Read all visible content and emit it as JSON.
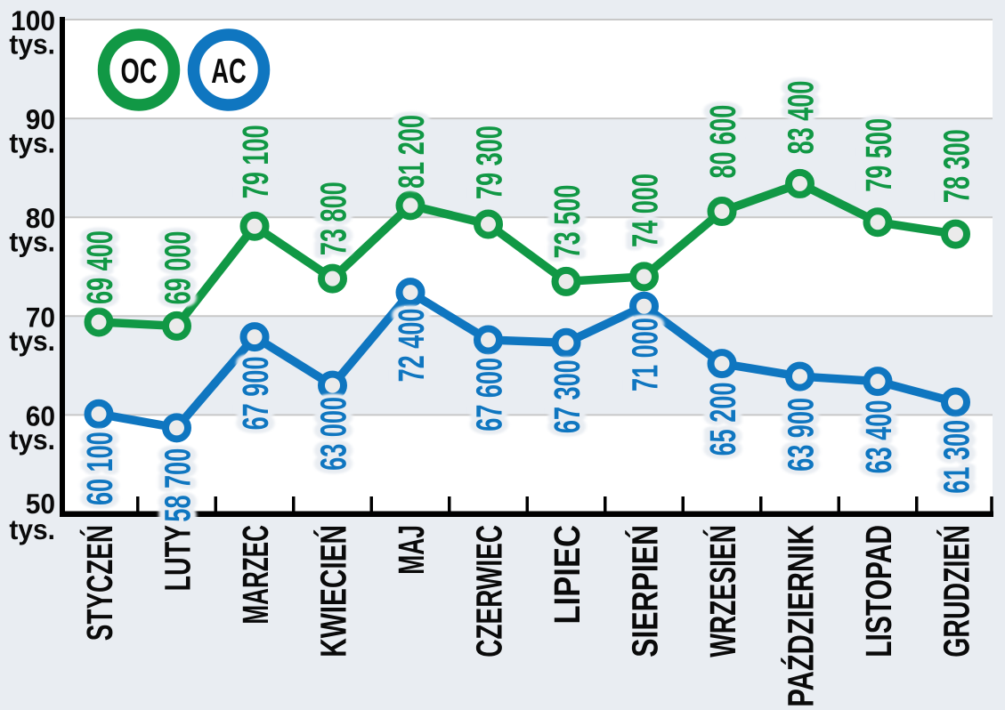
{
  "page": {
    "background": "#e9edf2"
  },
  "chart_data": {
    "type": "line",
    "title": "",
    "categories": [
      "STYCZEŃ",
      "LUTY",
      "MARZEC",
      "KWIECIEŃ",
      "MAJ",
      "CZERWIEC",
      "LIPIEC",
      "SIERPIEŃ",
      "WRZESIEŃ",
      "PAŹDZIERNIK",
      "LISTOPAD",
      "GRUDZIEŃ"
    ],
    "series": [
      {
        "name": "OC",
        "color": "#119845",
        "values": [
          69400,
          69000,
          79100,
          73800,
          81200,
          79300,
          73500,
          74000,
          80600,
          83400,
          79500,
          78300
        ],
        "label_side": "above"
      },
      {
        "name": "AC",
        "color": "#0f76c0",
        "values": [
          60100,
          58700,
          67900,
          63000,
          72400,
          67600,
          67300,
          71000,
          65200,
          63900,
          63400,
          61300
        ],
        "label_side": "below"
      }
    ],
    "ylim": [
      50000,
      100000
    ],
    "ytick_values": [
      100,
      90,
      80,
      70,
      60,
      50
    ],
    "ytick_unit": "tys.",
    "grid": true,
    "legend": {
      "position": "top-left",
      "entries": [
        {
          "label": "OC",
          "color": "#119845"
        },
        {
          "label": "AC",
          "color": "#0f76c0"
        }
      ]
    },
    "layout_hints": {
      "value_label_rotation": -90,
      "label_offsets_above": [
        20,
        24,
        31,
        26,
        19,
        28,
        26,
        33,
        37,
        33,
        34,
        35
      ],
      "label_offsets_below": [
        20,
        23,
        22,
        13,
        18,
        20,
        19,
        13,
        21,
        24,
        21,
        20
      ],
      "colors": {
        "background": "#e9edf2",
        "band_white": "#ffffff",
        "gridline": "#c8c8c8",
        "axis": "#000000",
        "text": "#0a0a0a",
        "label_halo": "#e9edf2",
        "marker_fill": "#ebebeb",
        "legend_fill": "#ffffff"
      }
    }
  }
}
